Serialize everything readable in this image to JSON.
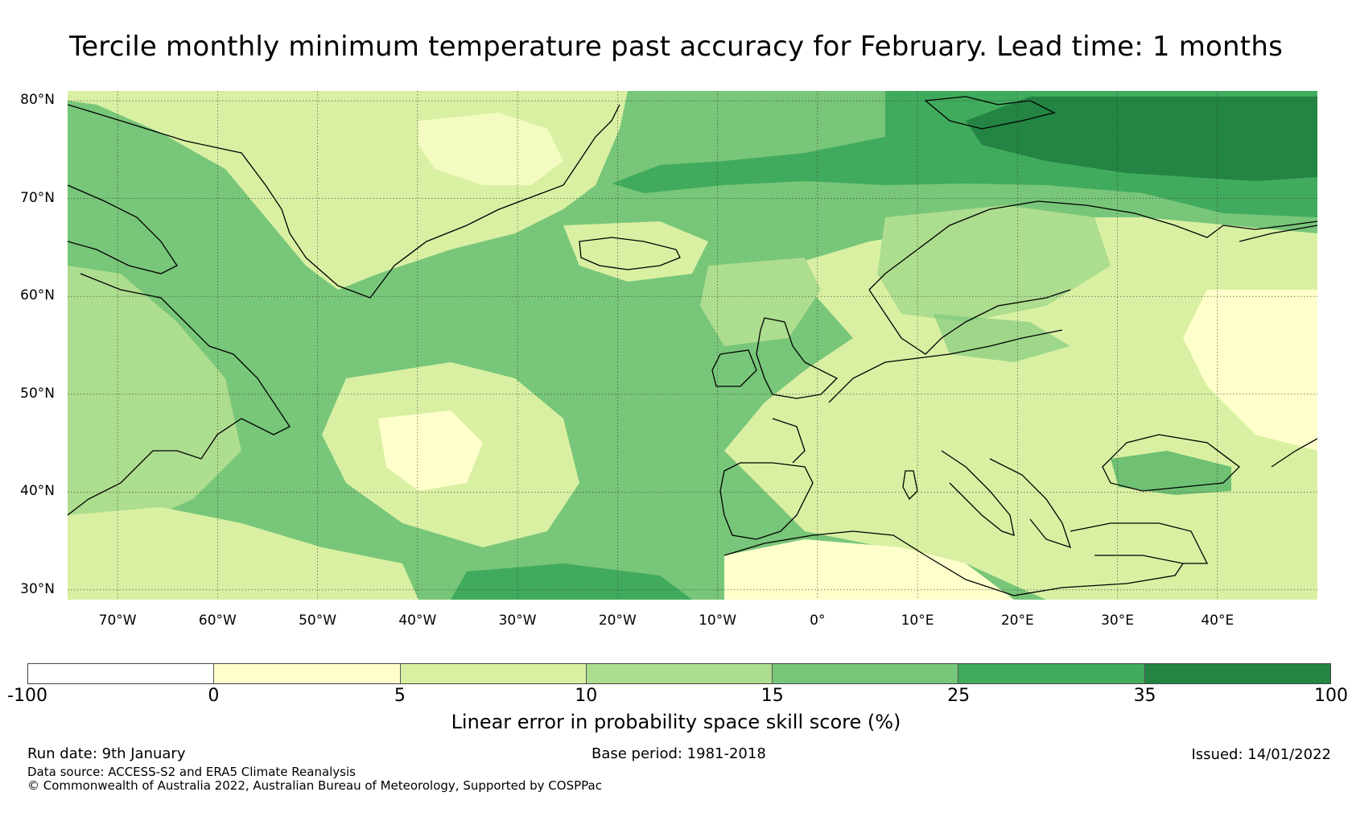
{
  "title": "Tercile monthly minimum temperature past accuracy for February. Lead time: 1 months",
  "map": {
    "lat_labels": [
      "80°N",
      "70°N",
      "60°N",
      "50°N",
      "40°N",
      "30°N"
    ],
    "lat_values": [
      80,
      70,
      60,
      50,
      40,
      30
    ],
    "lon_labels": [
      "70°W",
      "60°W",
      "50°W",
      "40°W",
      "30°W",
      "20°W",
      "10°W",
      "0°",
      "10°E",
      "20°E",
      "30°E",
      "40°E"
    ],
    "lon_values": [
      -70,
      -60,
      -50,
      -40,
      -30,
      -20,
      -10,
      0,
      10,
      20,
      30,
      40
    ],
    "lon_range": [
      -75,
      50
    ],
    "lat_range": [
      29,
      81
    ],
    "ocean_color": "#78c679",
    "land_color": "#d9f0a3"
  },
  "colorbar": {
    "ticks": [
      "-100",
      "0",
      "5",
      "10",
      "15",
      "25",
      "35",
      "100"
    ],
    "colors": [
      "#ffffff",
      "#ffffcc",
      "#d9f0a3",
      "#addd8e",
      "#78c679",
      "#41ab5d",
      "#238443"
    ],
    "label": "Linear error in probability space skill score (%)"
  },
  "footer": {
    "run_date": "Run date: 9th January",
    "base_period": "Base period: 1981-2018",
    "issued": "Issued: 14/01/2022",
    "data_source": "Data source: ACCESS-S2 and ERA5 Climate Reanalysis",
    "copyright": "© Commonwealth of Australia 2022, Australian Bureau of Meteorology, Supported by COSPPac"
  }
}
